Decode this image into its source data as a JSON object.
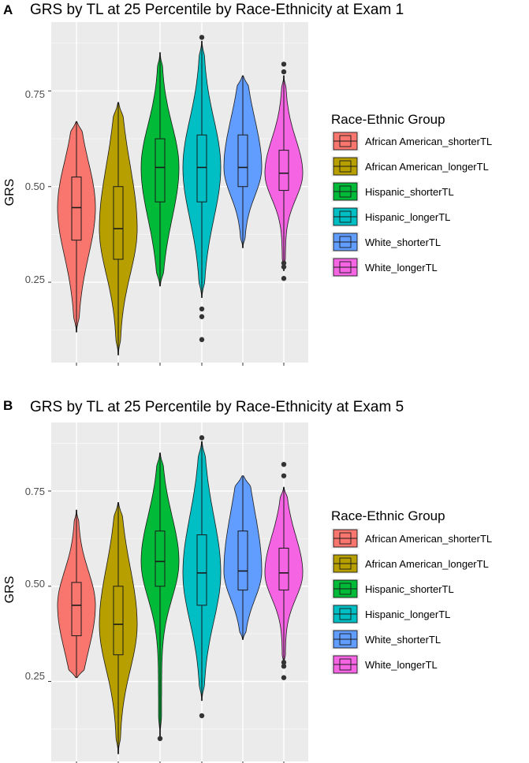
{
  "chart_data": [
    {
      "type": "violin",
      "panel_label": "A",
      "title": "GRS by TL at 25 Percentile by Race-Ethnicity at Exam 1",
      "ylabel": "GRS",
      "xlabel": "",
      "yticks": [
        "0.25",
        "0.50",
        "0.75"
      ],
      "ylim": [
        0.04,
        0.93
      ],
      "legend_title": "Race-Ethnic Group",
      "legend_position": "right",
      "groups": [
        {
          "name": "African American_shorterTL",
          "color": "#F8766D",
          "min": 0.12,
          "q1": 0.36,
          "median": 0.445,
          "q3": 0.525,
          "max": 0.67,
          "outliers": []
        },
        {
          "name": "African American_longerTL",
          "color": "#B79F00",
          "min": 0.06,
          "q1": 0.31,
          "median": 0.39,
          "q3": 0.5,
          "max": 0.72,
          "outliers": []
        },
        {
          "name": "Hispanic_shorterTL",
          "color": "#00BA38",
          "min": 0.24,
          "q1": 0.46,
          "median": 0.55,
          "q3": 0.625,
          "max": 0.85,
          "outliers": []
        },
        {
          "name": "Hispanic_longerTL",
          "color": "#00BFC4",
          "min": 0.21,
          "q1": 0.46,
          "median": 0.55,
          "q3": 0.635,
          "max": 0.88,
          "outliers": [
            0.18,
            0.16,
            0.1,
            0.89
          ]
        },
        {
          "name": "White_shorterTL",
          "color": "#619CFF",
          "min": 0.34,
          "q1": 0.5,
          "median": 0.55,
          "q3": 0.635,
          "max": 0.79,
          "outliers": []
        },
        {
          "name": "White_longerTL",
          "color": "#F564E3",
          "min": 0.28,
          "q1": 0.49,
          "median": 0.535,
          "q3": 0.595,
          "max": 0.79,
          "outliers": [
            0.26,
            0.29,
            0.3,
            0.8,
            0.82
          ]
        }
      ]
    },
    {
      "type": "violin",
      "panel_label": "B",
      "title": "GRS by TL at 25 Percentile by Race-Ethnicity at Exam 5",
      "ylabel": "GRS",
      "xlabel": "",
      "yticks": [
        "0.25",
        "0.50",
        "0.75"
      ],
      "ylim": [
        0.04,
        0.93
      ],
      "legend_title": "Race-Ethnic Group",
      "legend_position": "right",
      "groups": [
        {
          "name": "African American_shorterTL",
          "color": "#F8766D",
          "min": 0.26,
          "q1": 0.37,
          "median": 0.45,
          "q3": 0.51,
          "max": 0.7,
          "outliers": []
        },
        {
          "name": "African American_longerTL",
          "color": "#B79F00",
          "min": 0.06,
          "q1": 0.32,
          "median": 0.4,
          "q3": 0.5,
          "max": 0.72,
          "outliers": []
        },
        {
          "name": "Hispanic_shorterTL",
          "color": "#00BA38",
          "min": 0.1,
          "q1": 0.5,
          "median": 0.565,
          "q3": 0.645,
          "max": 0.85,
          "outliers": [
            0.1
          ]
        },
        {
          "name": "Hispanic_longerTL",
          "color": "#00BFC4",
          "min": 0.2,
          "q1": 0.45,
          "median": 0.535,
          "q3": 0.635,
          "max": 0.88,
          "outliers": [
            0.16,
            0.89
          ]
        },
        {
          "name": "White_shorterTL",
          "color": "#619CFF",
          "min": 0.36,
          "q1": 0.49,
          "median": 0.54,
          "q3": 0.645,
          "max": 0.79,
          "outliers": []
        },
        {
          "name": "White_longerTL",
          "color": "#F564E3",
          "min": 0.29,
          "q1": 0.49,
          "median": 0.535,
          "q3": 0.6,
          "max": 0.76,
          "outliers": [
            0.26,
            0.29,
            0.3,
            0.79,
            0.82
          ]
        }
      ]
    }
  ]
}
